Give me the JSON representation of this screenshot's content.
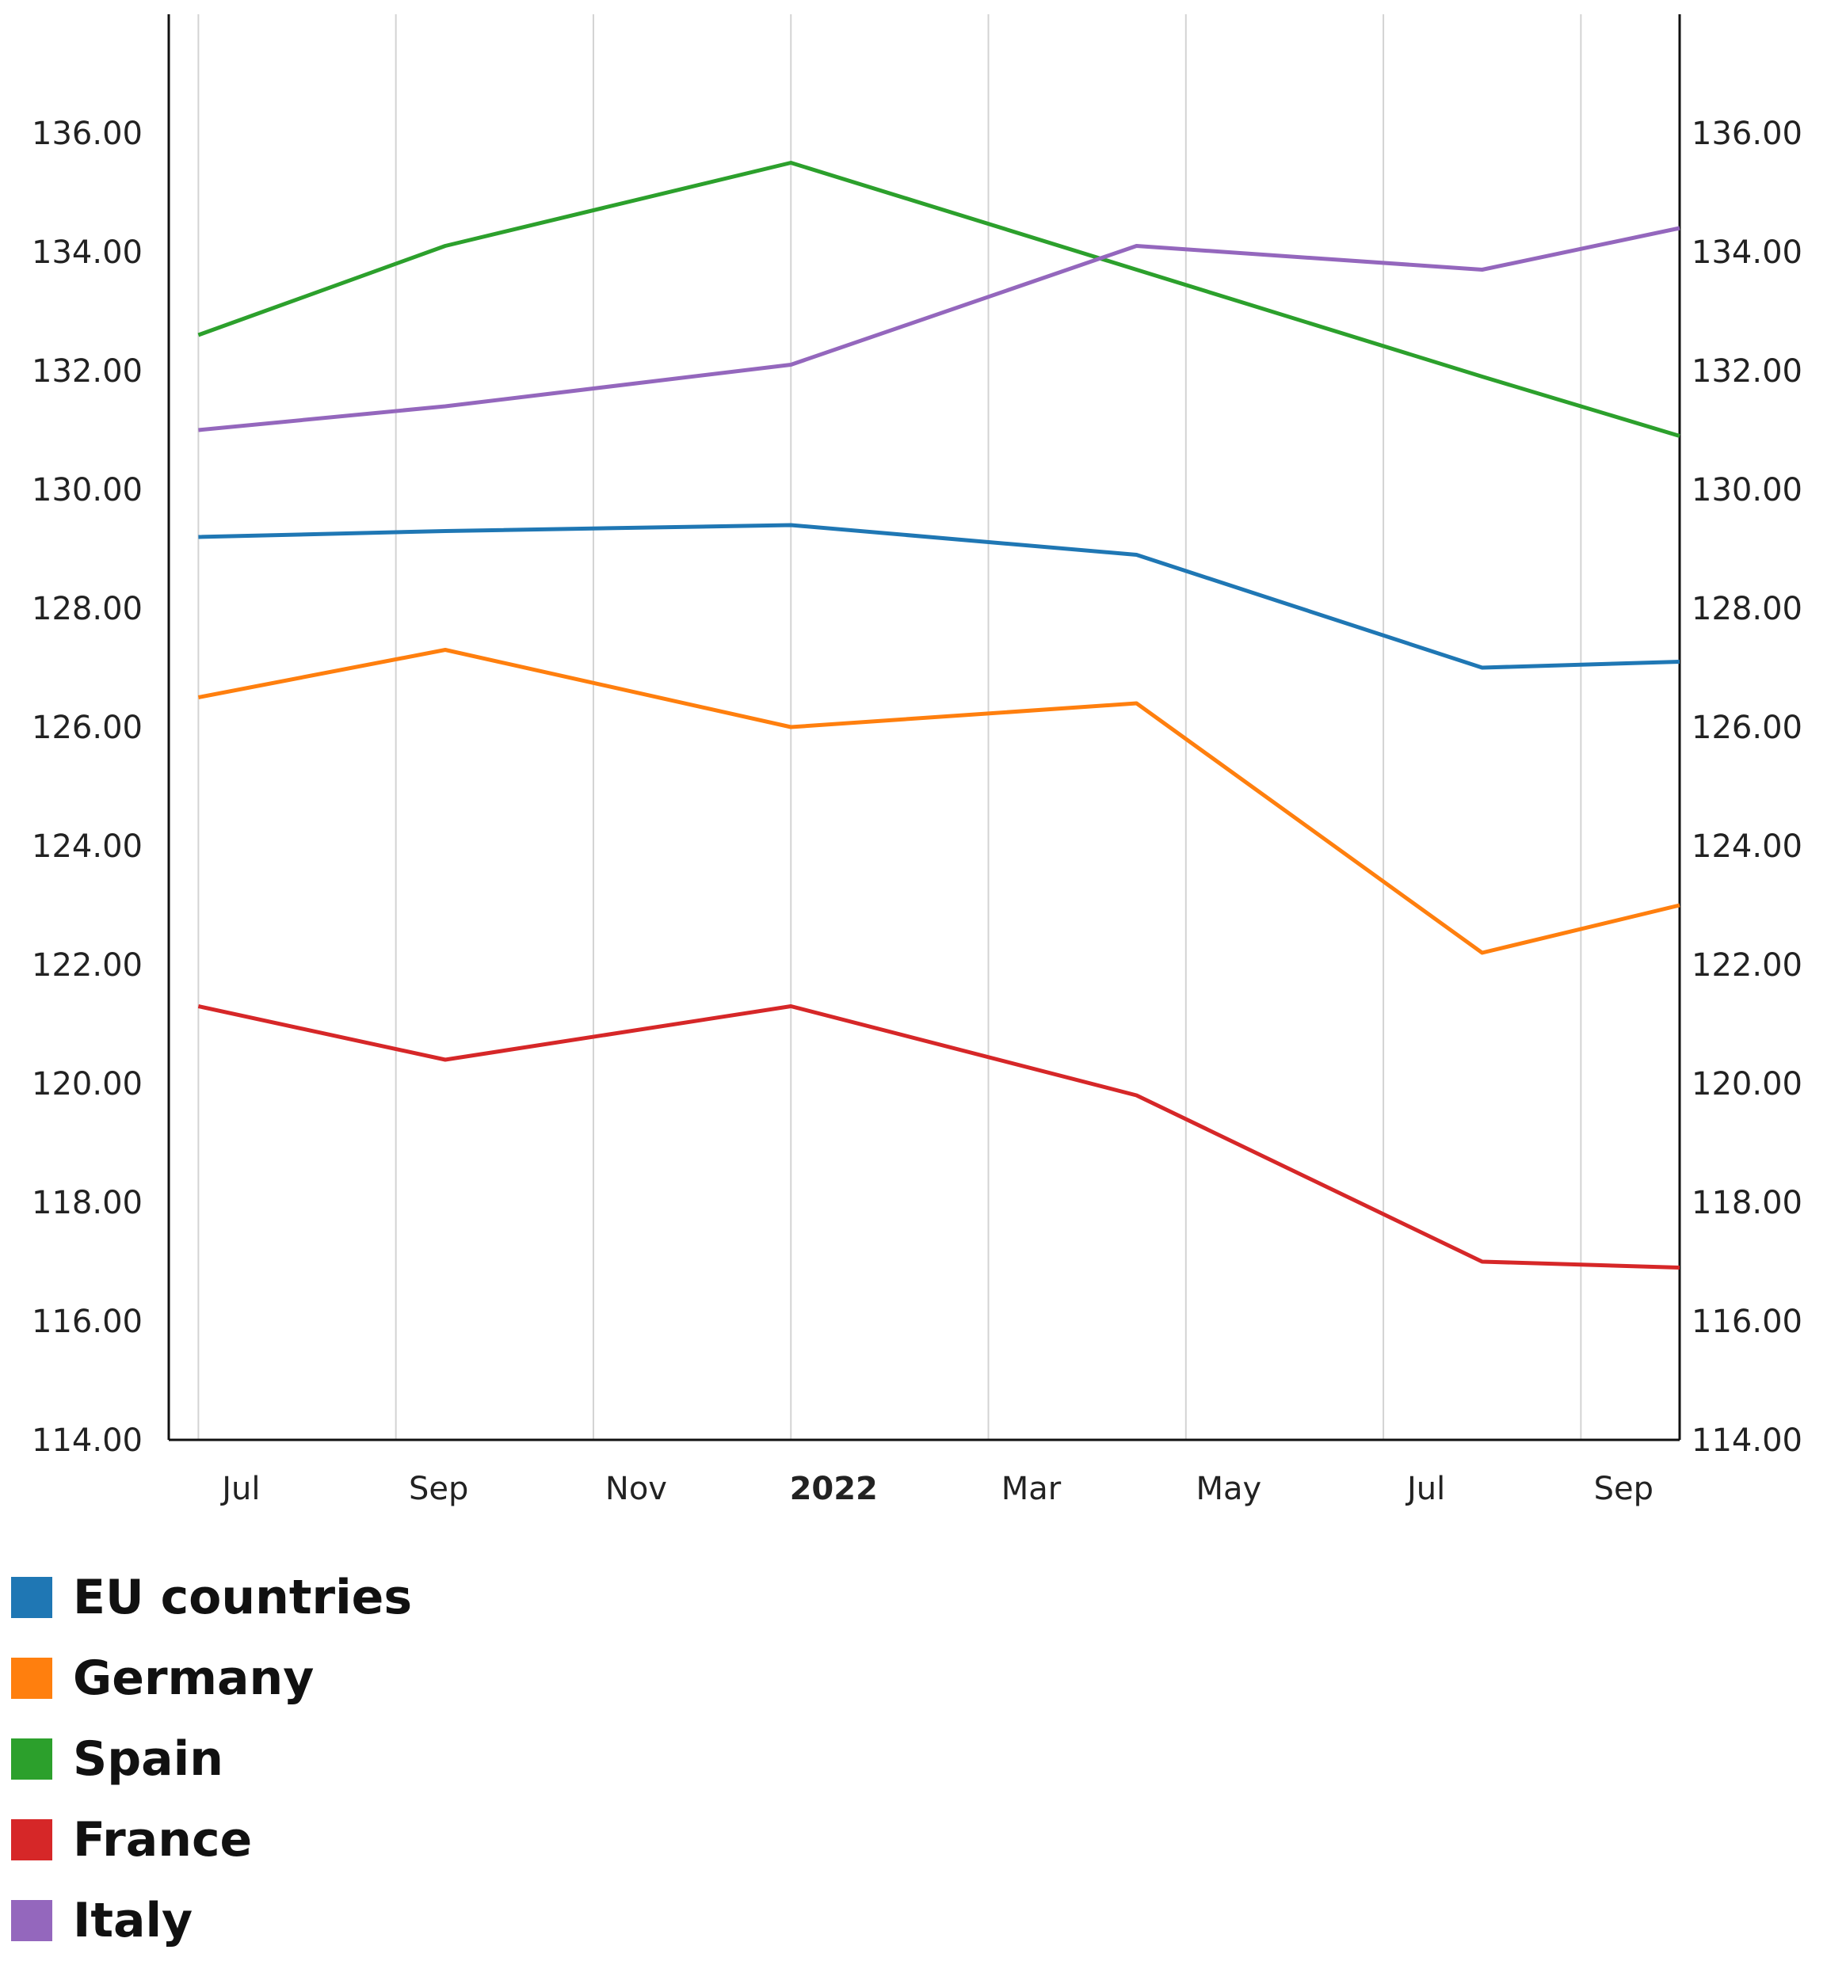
{
  "chart_data": {
    "type": "line",
    "title": "",
    "xlabel": "",
    "ylabel": "",
    "x_months": [
      0,
      2.5,
      6,
      9.5,
      13,
      15
    ],
    "x_range": [
      -0.3,
      15
    ],
    "x_ticks": [
      {
        "m": 0,
        "label": "Jul",
        "bold": false
      },
      {
        "m": 2,
        "label": "Sep",
        "bold": false
      },
      {
        "m": 4,
        "label": "Nov",
        "bold": false
      },
      {
        "m": 6,
        "label": "2022",
        "bold": true
      },
      {
        "m": 8,
        "label": "Mar",
        "bold": false
      },
      {
        "m": 10,
        "label": "May",
        "bold": false
      },
      {
        "m": 12,
        "label": "Jul",
        "bold": false
      },
      {
        "m": 14,
        "label": "Sep",
        "bold": false
      }
    ],
    "ylim": [
      114,
      138
    ],
    "y_ticks": [
      "114.00",
      "116.00",
      "118.00",
      "120.00",
      "122.00",
      "124.00",
      "126.00",
      "128.00",
      "130.00",
      "132.00",
      "134.00",
      "136.00"
    ],
    "grid": "vertical",
    "series": [
      {
        "name": "EU countries",
        "color": "#1f77b4",
        "values": [
          129.2,
          129.3,
          129.4,
          128.9,
          127.0,
          127.1
        ]
      },
      {
        "name": "Germany",
        "color": "#ff7f0e",
        "values": [
          126.5,
          127.3,
          126.0,
          126.4,
          122.2,
          123.0
        ]
      },
      {
        "name": "Spain",
        "color": "#2ca02c",
        "values": [
          132.6,
          134.1,
          135.5,
          133.7,
          131.9,
          130.9
        ]
      },
      {
        "name": "France",
        "color": "#d62728",
        "values": [
          121.3,
          120.4,
          121.3,
          119.8,
          117.0,
          116.9
        ]
      },
      {
        "name": "Italy",
        "color": "#9467bd",
        "values": [
          131.0,
          131.4,
          132.1,
          134.1,
          133.7,
          134.4
        ]
      }
    ]
  },
  "legend": [
    {
      "label": "EU countries",
      "color": "#1f77b4"
    },
    {
      "label": "Germany",
      "color": "#ff7f0e"
    },
    {
      "label": "Spain",
      "color": "#2ca02c"
    },
    {
      "label": "France",
      "color": "#d62728"
    },
    {
      "label": "Italy",
      "color": "#9467bd"
    }
  ]
}
